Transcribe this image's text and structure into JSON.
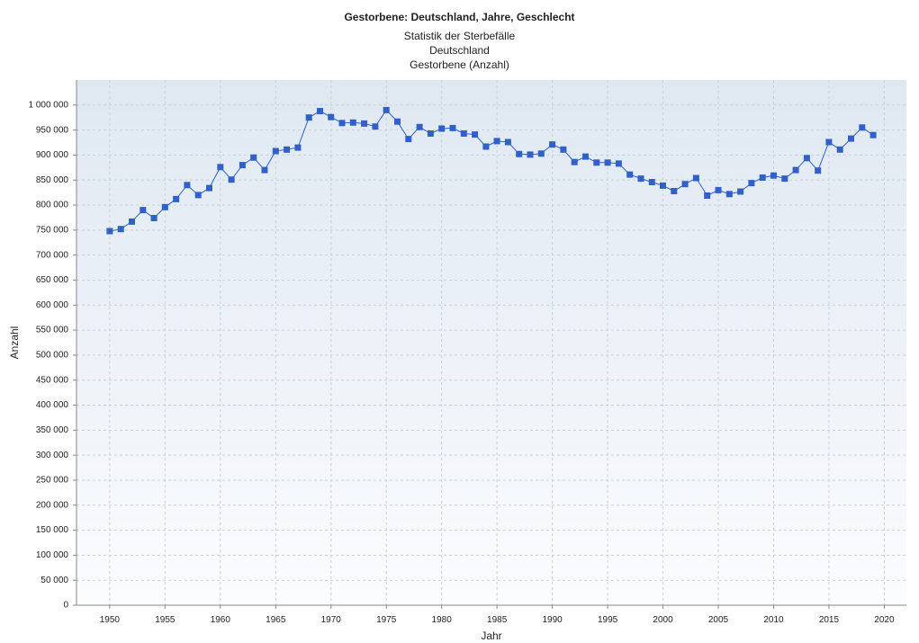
{
  "chart_data": {
    "type": "line",
    "title": "Gestorbene: Deutschland, Jahre, Geschlecht",
    "subtitle_lines": [
      "Statistik der Sterbefälle",
      "Deutschland",
      "Gestorbene (Anzahl)"
    ],
    "xlabel": "Jahr",
    "ylabel": "Anzahl",
    "xlim": [
      1947,
      2022
    ],
    "ylim": [
      0,
      1050000
    ],
    "xticks": [
      1950,
      1955,
      1960,
      1965,
      1970,
      1975,
      1980,
      1985,
      1990,
      1995,
      2000,
      2005,
      2010,
      2015,
      2020
    ],
    "yticks": [
      0,
      50000,
      100000,
      150000,
      200000,
      250000,
      300000,
      350000,
      400000,
      450000,
      500000,
      550000,
      600000,
      650000,
      700000,
      750000,
      800000,
      850000,
      900000,
      950000,
      1000000
    ],
    "ytick_labels": [
      "0",
      "50 000",
      "100 000",
      "150 000",
      "200 000",
      "250 000",
      "300 000",
      "350 000",
      "400 000",
      "450 000",
      "500 000",
      "550 000",
      "600 000",
      "650 000",
      "700 000",
      "750 000",
      "800 000",
      "850 000",
      "900 000",
      "950 000",
      "1 000 000"
    ],
    "grid": true,
    "series_color": "#3060c8",
    "x": [
      1950,
      1951,
      1952,
      1953,
      1954,
      1955,
      1956,
      1957,
      1958,
      1959,
      1960,
      1961,
      1962,
      1963,
      1964,
      1965,
      1966,
      1967,
      1968,
      1969,
      1970,
      1971,
      1972,
      1973,
      1974,
      1975,
      1976,
      1977,
      1978,
      1979,
      1980,
      1981,
      1982,
      1983,
      1984,
      1985,
      1986,
      1987,
      1988,
      1989,
      1990,
      1991,
      1992,
      1993,
      1994,
      1995,
      1996,
      1997,
      1998,
      1999,
      2000,
      2001,
      2002,
      2003,
      2004,
      2005,
      2006,
      2007,
      2008,
      2009,
      2010,
      2011,
      2012,
      2013,
      2014,
      2015,
      2016,
      2017,
      2018,
      2019
    ],
    "series": [
      {
        "values": [
          748000,
          752000,
          767000,
          790000,
          774000,
          796000,
          812000,
          840000,
          820000,
          834000,
          876000,
          851000,
          880000,
          895000,
          870000,
          908000,
          911000,
          915000,
          975000,
          988000,
          976000,
          964000,
          965000,
          963000,
          957000,
          990000,
          967000,
          932000,
          956000,
          943000,
          953000,
          954000,
          943000,
          941000,
          917000,
          928000,
          926000,
          902000,
          901000,
          903000,
          921000,
          911000,
          886000,
          897000,
          885000,
          885000,
          883000,
          861000,
          853000,
          846000,
          839000,
          828000,
          842000,
          854000,
          819000,
          830000,
          822000,
          827000,
          844000,
          855000,
          859000,
          853000,
          870000,
          894000,
          869000,
          926000,
          911000,
          933000,
          955000,
          940000
        ]
      }
    ]
  }
}
